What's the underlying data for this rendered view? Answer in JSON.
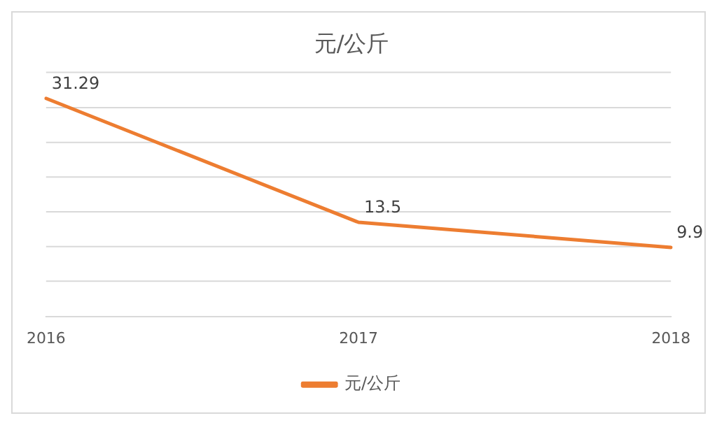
{
  "chart_data": {
    "type": "line",
    "title": "元/公斤",
    "categories": [
      "2016",
      "2017",
      "2018"
    ],
    "series": [
      {
        "name": "元/公斤",
        "color": "#ed7d31",
        "values": [
          31.29,
          13.5,
          9.9
        ]
      }
    ],
    "ylim": [
      0,
      35
    ],
    "yticks": [
      {
        "value": 0,
        "label": null
      },
      {
        "value": 5,
        "label": null
      },
      {
        "value": 10,
        "label": null
      },
      {
        "value": 15,
        "label": null
      },
      {
        "value": 20,
        "label": null
      },
      {
        "value": 25,
        "label": null
      },
      {
        "value": 30,
        "label": null
      },
      {
        "value": 35,
        "label": null
      }
    ],
    "tick_labels": "x",
    "grid": "y",
    "legend": "bottom",
    "marker": "none",
    "line_style": "solid",
    "data_labels": true
  }
}
